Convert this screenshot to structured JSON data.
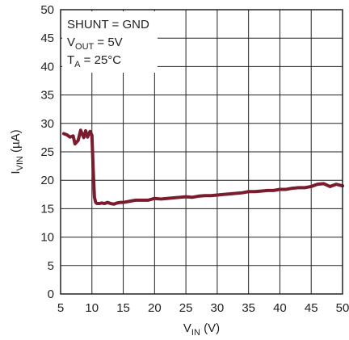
{
  "chart_data": {
    "type": "line",
    "title": "",
    "xlabel": {
      "main": "V",
      "sub": "IN",
      "unit": " (V)"
    },
    "ylabel": {
      "main": "I",
      "sub": "VIN",
      "unit": " (µA)"
    },
    "xlim": [
      5,
      50
    ],
    "ylim": [
      0,
      50
    ],
    "xticks": [
      5,
      10,
      15,
      20,
      25,
      30,
      35,
      40,
      45,
      50
    ],
    "yticks": [
      0,
      5,
      10,
      15,
      20,
      25,
      30,
      35,
      40,
      45,
      50
    ],
    "grid": true,
    "annotations": [
      {
        "text": "SHUNT = GND"
      },
      {
        "main": "V",
        "sub": "OUT",
        "rest": " = 5V"
      },
      {
        "main": "T",
        "sub": "A",
        "rest": " = 25°C"
      }
    ],
    "series": [
      {
        "color": "#7b1c2e",
        "x": [
          5.5,
          6,
          6.5,
          7,
          7.3,
          7.8,
          8.2,
          8.7,
          9.0,
          9.3,
          9.7,
          10.0,
          10.2,
          10.4,
          10.6,
          10.8,
          11.2,
          11.6,
          12.0,
          12.5,
          13.0,
          13.5,
          14.0,
          14.5,
          15.0,
          15.5,
          16,
          17,
          18,
          19,
          20,
          21,
          22,
          23,
          24,
          25,
          26,
          27,
          28,
          29,
          30,
          31,
          32,
          33,
          34,
          35,
          36,
          37,
          38,
          39,
          40,
          41,
          42,
          43,
          44,
          45,
          46,
          47,
          48,
          49,
          50
        ],
        "y": [
          28.2,
          28.0,
          27.6,
          27.8,
          26.4,
          27.0,
          28.8,
          27.5,
          28.7,
          27.6,
          28.6,
          27.9,
          22.0,
          17.0,
          16.1,
          15.9,
          15.9,
          16.0,
          15.9,
          16.1,
          15.9,
          15.8,
          16.0,
          16.1,
          16.1,
          16.2,
          16.3,
          16.5,
          16.5,
          16.5,
          16.8,
          16.7,
          16.8,
          16.9,
          17.0,
          17.1,
          17.0,
          17.2,
          17.3,
          17.3,
          17.4,
          17.5,
          17.6,
          17.7,
          17.8,
          18.0,
          18.0,
          18.1,
          18.2,
          18.2,
          18.4,
          18.4,
          18.6,
          18.7,
          18.7,
          18.9,
          19.3,
          19.4,
          18.9,
          19.3,
          19.0
        ]
      }
    ]
  }
}
